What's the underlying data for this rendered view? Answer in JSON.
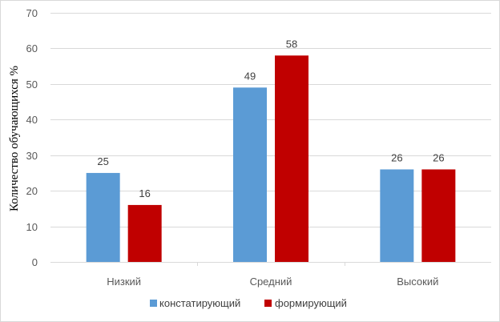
{
  "chart_data": {
    "type": "bar",
    "categories": [
      "Низкий",
      "Средний",
      "Высокий"
    ],
    "series": [
      {
        "name": "констатирующий",
        "values": [
          25,
          49,
          26
        ],
        "color": "#5b9bd5"
      },
      {
        "name": "формирующий",
        "values": [
          16,
          58,
          26
        ],
        "color": "#c00000"
      }
    ],
    "title": "",
    "xlabel": "",
    "ylabel": "Количество обучающихся %",
    "ylim": [
      0,
      70
    ],
    "yticks": [
      0,
      10,
      20,
      30,
      40,
      50,
      60,
      70
    ],
    "grid": true,
    "legend_position": "bottom",
    "data_labels": true
  }
}
